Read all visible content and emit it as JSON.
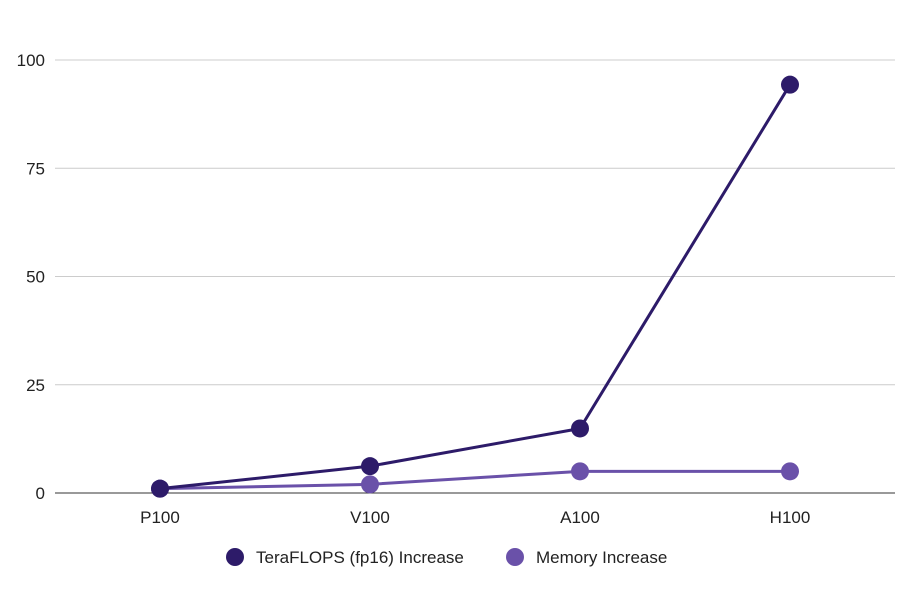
{
  "chart_data": {
    "type": "line",
    "categories": [
      "P100",
      "V100",
      "A100",
      "H100"
    ],
    "series": [
      {
        "name": "TeraFLOPS (fp16) Increase",
        "values": [
          1,
          6.2,
          14.9,
          94.3
        ],
        "color": "#2d1b69"
      },
      {
        "name": "Memory Increase",
        "values": [
          1,
          2,
          5,
          5
        ],
        "color": "#6a51a9"
      }
    ],
    "yticks": [
      0,
      25,
      50,
      75,
      100
    ],
    "ylim": [
      0,
      100
    ],
    "title": "",
    "xlabel": "",
    "ylabel": "",
    "grid": true,
    "legend_position": "bottom"
  }
}
